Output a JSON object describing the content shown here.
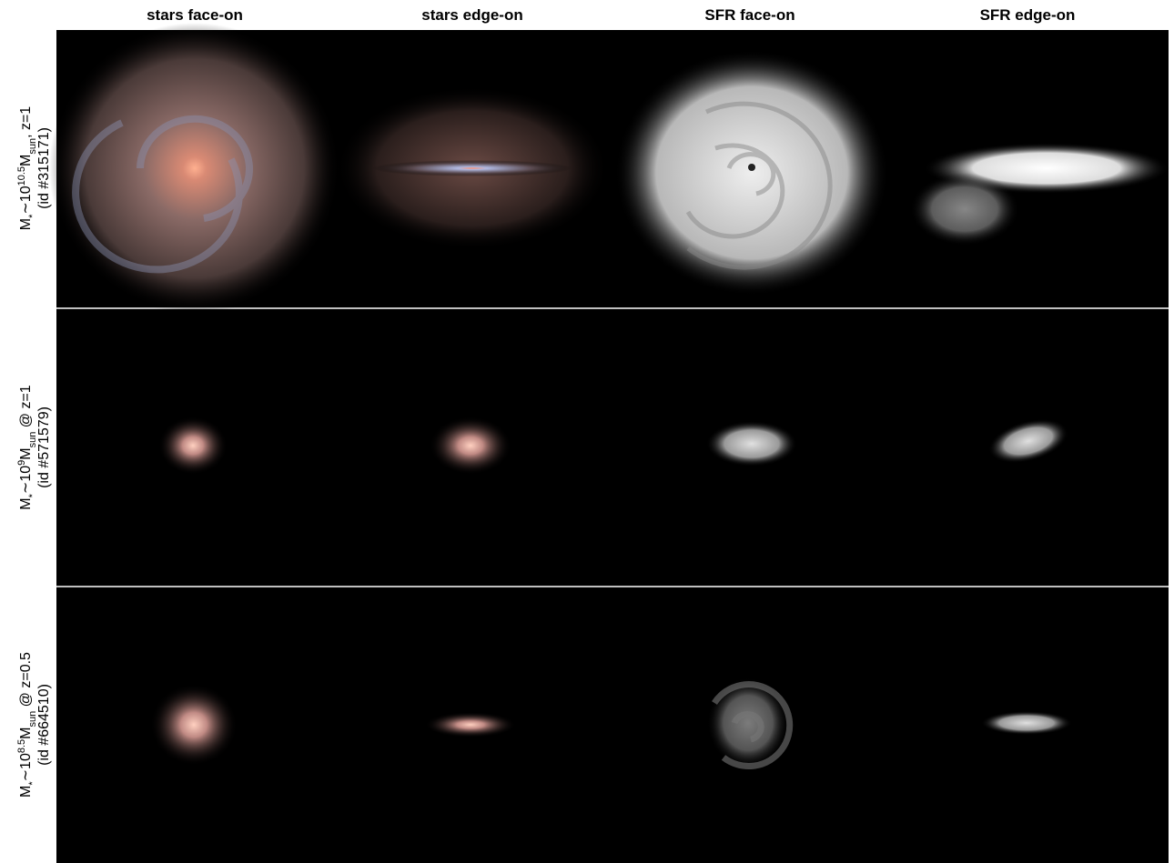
{
  "header": {
    "columns": [
      "stars face-on",
      "stars edge-on",
      "SFR face-on",
      "SFR edge-on"
    ]
  },
  "rows": [
    {
      "m": "M",
      "star": "*",
      "base": "∼10",
      "exp": "10.5",
      "unit": "M",
      "unit_sub": "sun",
      "rest": ", z=1",
      "id": "(id #315171)"
    },
    {
      "m": "M",
      "star": "*",
      "base": "∼10",
      "exp": "9",
      "unit": "M",
      "unit_sub": "sun",
      "rest": " @ z=1",
      "id": "(id #571579)"
    },
    {
      "m": "M",
      "star": "*",
      "base": "∼10",
      "exp": "8.5",
      "unit": "M",
      "unit_sub": "sun",
      "rest": " @ z=0.5",
      "id": "(id #664510)"
    }
  ]
}
